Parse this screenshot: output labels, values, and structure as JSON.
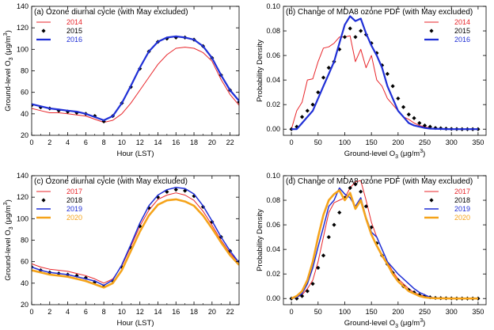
{
  "chart_data": [
    {
      "id": "a",
      "type": "line",
      "title": "(a) Ozone diurnal cycle (with May excluded)",
      "xlabel": "Hour (LST)",
      "ylabel": "Ground-level O3 (μg/m3)",
      "xlim": [
        0,
        23
      ],
      "ylim": [
        20,
        140
      ],
      "xticks": [
        0,
        2,
        4,
        6,
        8,
        10,
        12,
        14,
        16,
        18,
        20,
        22
      ],
      "yticks": [
        20,
        40,
        60,
        80,
        100,
        120,
        140
      ],
      "legend_position": "top-left",
      "series": [
        {
          "name": "2014",
          "color": "#e8252a",
          "style": "line",
          "width": 1.0,
          "x": [
            0,
            1,
            2,
            3,
            4,
            5,
            6,
            7,
            8,
            9,
            10,
            11,
            12,
            13,
            14,
            15,
            16,
            17,
            18,
            19,
            20,
            21,
            22,
            23
          ],
          "values": [
            45,
            43,
            41,
            41,
            40,
            39,
            38,
            35,
            32,
            34,
            40,
            50,
            62,
            74,
            86,
            95,
            101,
            102,
            101,
            97,
            89,
            72,
            58,
            48
          ]
        },
        {
          "name": "2015",
          "color": "#000000",
          "style": "markers",
          "x": [
            0,
            1,
            2,
            3,
            4,
            5,
            6,
            7,
            8,
            9,
            10,
            11,
            12,
            13,
            14,
            15,
            16,
            17,
            18,
            19,
            20,
            21,
            22,
            23
          ],
          "values": [
            48,
            46,
            45,
            43,
            42,
            41,
            40,
            38,
            33,
            38,
            50,
            65,
            82,
            98,
            107,
            110,
            111,
            111,
            109,
            103,
            92,
            76,
            62,
            51
          ]
        },
        {
          "name": "2016",
          "color": "#1f2fd6",
          "style": "line",
          "width": 2.2,
          "x": [
            0,
            1,
            2,
            3,
            4,
            5,
            6,
            7,
            8,
            9,
            10,
            11,
            12,
            13,
            14,
            15,
            16,
            17,
            18,
            19,
            20,
            21,
            22,
            23
          ],
          "values": [
            49,
            47,
            45,
            44,
            43,
            42,
            40,
            37,
            34,
            38,
            50,
            66,
            83,
            98,
            107,
            111,
            112,
            111,
            109,
            103,
            92,
            76,
            62,
            52
          ]
        }
      ]
    },
    {
      "id": "b",
      "type": "line",
      "title": "(b) Change of MDA8 ozone PDF (with May excluded)",
      "xlabel": "Ground-level O3 (μg/m3)",
      "ylabel": "Probability Density",
      "xlim": [
        -15,
        365
      ],
      "ylim": [
        -0.005,
        0.1
      ],
      "xticks": [
        0,
        50,
        100,
        150,
        200,
        250,
        300,
        350
      ],
      "yticks": [
        0.0,
        0.02,
        0.04,
        0.06,
        0.08,
        0.1
      ],
      "ytick_labels": [
        "0.00",
        "0.02",
        "0.04",
        "0.06",
        "0.08",
        "0.10"
      ],
      "legend_position": "top-right",
      "series": [
        {
          "name": "2014",
          "color": "#e8252a",
          "style": "line",
          "width": 1.0,
          "x": [
            0,
            10,
            20,
            30,
            40,
            50,
            60,
            70,
            80,
            90,
            100,
            110,
            120,
            130,
            140,
            150,
            160,
            170,
            180,
            190,
            200,
            210,
            220,
            230,
            240,
            250,
            260,
            270,
            280,
            290,
            300,
            310,
            320,
            330,
            340,
            350
          ],
          "values": [
            0.0,
            0.015,
            0.022,
            0.04,
            0.041,
            0.055,
            0.066,
            0.067,
            0.07,
            0.075,
            0.075,
            0.076,
            0.055,
            0.065,
            0.05,
            0.06,
            0.04,
            0.035,
            0.025,
            0.02,
            0.015,
            0.01,
            0.008,
            0.005,
            0.003,
            0.002,
            0.001,
            0.0005,
            0.0003,
            0.0002,
            0.0001,
            0.0,
            0.0,
            0.0,
            0.0,
            0.0
          ]
        },
        {
          "name": "2015",
          "color": "#000000",
          "style": "markers",
          "x": [
            0,
            10,
            20,
            30,
            40,
            50,
            60,
            70,
            80,
            90,
            100,
            110,
            120,
            130,
            140,
            150,
            160,
            170,
            180,
            190,
            200,
            210,
            220,
            230,
            240,
            250,
            260,
            270,
            280,
            290,
            300,
            310,
            320,
            330,
            340,
            350
          ],
          "values": [
            0.0,
            0.002,
            0.01,
            0.015,
            0.02,
            0.03,
            0.042,
            0.05,
            0.055,
            0.065,
            0.075,
            0.082,
            0.075,
            0.08,
            0.077,
            0.07,
            0.062,
            0.052,
            0.045,
            0.035,
            0.025,
            0.018,
            0.012,
            0.009,
            0.005,
            0.003,
            0.002,
            0.001,
            0.0007,
            0.0004,
            0.0002,
            0.0001,
            0.0,
            0.0,
            0.0,
            0.0
          ]
        },
        {
          "name": "2016",
          "color": "#1f2fd6",
          "style": "line",
          "width": 2.2,
          "x": [
            0,
            10,
            20,
            30,
            40,
            50,
            60,
            70,
            80,
            90,
            100,
            110,
            120,
            130,
            140,
            150,
            160,
            170,
            180,
            190,
            200,
            210,
            220,
            230,
            240,
            250,
            260,
            270,
            280,
            290,
            300,
            310,
            320,
            330,
            340,
            350
          ],
          "values": [
            0.0,
            0.0,
            0.005,
            0.01,
            0.015,
            0.025,
            0.035,
            0.045,
            0.055,
            0.07,
            0.085,
            0.092,
            0.088,
            0.09,
            0.078,
            0.068,
            0.06,
            0.05,
            0.035,
            0.025,
            0.015,
            0.01,
            0.005,
            0.003,
            0.002,
            0.001,
            0.0005,
            0.0003,
            0.0002,
            0.0001,
            0.0,
            0.0,
            0.0,
            0.0,
            0.0,
            0.0
          ]
        }
      ]
    },
    {
      "id": "c",
      "type": "line",
      "title": "(c) Ozone diurnal cycle (with May excluded)",
      "xlabel": "Hour (LST)",
      "ylabel": "Ground-level O3 (μg/m3)",
      "xlim": [
        0,
        23
      ],
      "ylim": [
        20,
        140
      ],
      "xticks": [
        0,
        2,
        4,
        6,
        8,
        10,
        12,
        14,
        16,
        18,
        20,
        22
      ],
      "yticks": [
        20,
        40,
        60,
        80,
        100,
        120,
        140
      ],
      "legend_position": "top-left",
      "series": [
        {
          "name": "2017",
          "color": "#e8252a",
          "style": "line",
          "width": 1.0,
          "x": [
            0,
            1,
            2,
            3,
            4,
            5,
            6,
            7,
            8,
            9,
            10,
            11,
            12,
            13,
            14,
            15,
            16,
            17,
            18,
            19,
            20,
            21,
            22,
            23
          ],
          "values": [
            58,
            55,
            53,
            52,
            51,
            49,
            47,
            44,
            40,
            44,
            56,
            74,
            93,
            108,
            118,
            122,
            124,
            122,
            117,
            107,
            94,
            80,
            68,
            59
          ]
        },
        {
          "name": "2018",
          "color": "#000000",
          "style": "markers",
          "x": [
            0,
            1,
            2,
            3,
            4,
            5,
            6,
            7,
            8,
            9,
            10,
            11,
            12,
            13,
            14,
            15,
            16,
            17,
            18,
            19,
            20,
            21,
            22,
            23
          ],
          "values": [
            55,
            52,
            50,
            49,
            48,
            47,
            45,
            41,
            37,
            42,
            55,
            73,
            93,
            110,
            120,
            125,
            127,
            126,
            121,
            111,
            97,
            83,
            70,
            60
          ]
        },
        {
          "name": "2019",
          "color": "#1f2fd6",
          "style": "line",
          "width": 1.5,
          "x": [
            0,
            1,
            2,
            3,
            4,
            5,
            6,
            7,
            8,
            9,
            10,
            11,
            12,
            13,
            14,
            15,
            16,
            17,
            18,
            19,
            20,
            21,
            22,
            23
          ],
          "values": [
            55,
            52,
            50,
            49,
            48,
            46,
            44,
            42,
            38,
            43,
            57,
            76,
            96,
            112,
            122,
            127,
            129,
            128,
            123,
            112,
            98,
            83,
            70,
            59
          ]
        },
        {
          "name": "2020",
          "color": "#f5a31a",
          "style": "line",
          "width": 2.6,
          "x": [
            0,
            1,
            2,
            3,
            4,
            5,
            6,
            7,
            8,
            9,
            10,
            11,
            12,
            13,
            14,
            15,
            16,
            17,
            18,
            19,
            20,
            21,
            22,
            23
          ],
          "values": [
            52,
            50,
            48,
            47,
            46,
            44,
            42,
            39,
            36,
            40,
            52,
            70,
            88,
            103,
            113,
            117,
            118,
            116,
            112,
            103,
            91,
            78,
            66,
            57
          ]
        }
      ]
    },
    {
      "id": "d",
      "type": "line",
      "title": "(d) Change of MDA8 ozone PDF (with May excluded)",
      "xlabel": "Ground-level O3 (μg/m3)",
      "ylabel": "Probability Density",
      "xlim": [
        -15,
        365
      ],
      "ylim": [
        -0.005,
        0.1
      ],
      "xticks": [
        0,
        50,
        100,
        150,
        200,
        250,
        300,
        350
      ],
      "yticks": [
        0.0,
        0.02,
        0.04,
        0.06,
        0.08,
        0.1
      ],
      "ytick_labels": [
        "0.00",
        "0.02",
        "0.04",
        "0.06",
        "0.08",
        "0.10"
      ],
      "legend_position": "top-right",
      "series": [
        {
          "name": "2017",
          "color": "#e8252a",
          "style": "line",
          "width": 1.0,
          "x": [
            0,
            10,
            20,
            30,
            40,
            50,
            60,
            70,
            80,
            90,
            100,
            110,
            120,
            130,
            140,
            150,
            160,
            170,
            180,
            190,
            200,
            210,
            220,
            230,
            240,
            250,
            260,
            270,
            280,
            290,
            300,
            310,
            320,
            330,
            340,
            350
          ],
          "values": [
            0.0,
            0.001,
            0.003,
            0.008,
            0.015,
            0.03,
            0.05,
            0.07,
            0.078,
            0.08,
            0.082,
            0.09,
            0.095,
            0.096,
            0.08,
            0.062,
            0.05,
            0.04,
            0.03,
            0.022,
            0.016,
            0.012,
            0.008,
            0.005,
            0.003,
            0.002,
            0.001,
            0.0005,
            0.0003,
            0.0002,
            0.0001,
            0.0,
            0.0,
            0.0,
            0.0,
            0.0
          ]
        },
        {
          "name": "2018",
          "color": "#000000",
          "style": "markers",
          "x": [
            0,
            10,
            20,
            30,
            40,
            50,
            60,
            70,
            80,
            90,
            100,
            110,
            120,
            130,
            140,
            150,
            160,
            170,
            180,
            190,
            200,
            210,
            220,
            230,
            240,
            250,
            260,
            270,
            280,
            290,
            300,
            310,
            320,
            330,
            340,
            350
          ],
          "values": [
            0.0,
            0.0,
            0.002,
            0.006,
            0.012,
            0.025,
            0.035,
            0.05,
            0.06,
            0.07,
            0.082,
            0.09,
            0.093,
            0.087,
            0.075,
            0.058,
            0.045,
            0.035,
            0.028,
            0.021,
            0.015,
            0.01,
            0.007,
            0.005,
            0.003,
            0.002,
            0.001,
            0.0005,
            0.0003,
            0.0002,
            0.0001,
            0.0,
            0.0,
            0.0,
            0.0,
            0.0
          ]
        },
        {
          "name": "2019",
          "color": "#1f2fd6",
          "style": "line",
          "width": 1.5,
          "x": [
            0,
            10,
            20,
            30,
            40,
            50,
            60,
            70,
            80,
            90,
            100,
            110,
            120,
            130,
            140,
            150,
            160,
            170,
            180,
            190,
            200,
            210,
            220,
            230,
            240,
            250,
            260,
            270,
            280,
            290,
            300,
            310,
            320,
            330,
            340,
            350
          ],
          "values": [
            0.0,
            0.001,
            0.004,
            0.012,
            0.025,
            0.042,
            0.058,
            0.075,
            0.08,
            0.09,
            0.085,
            0.082,
            0.075,
            0.082,
            0.066,
            0.054,
            0.05,
            0.04,
            0.03,
            0.025,
            0.02,
            0.016,
            0.012,
            0.008,
            0.005,
            0.003,
            0.001,
            0.0005,
            0.0003,
            0.0002,
            0.0001,
            0.0,
            0.0,
            0.0,
            0.0,
            0.0
          ]
        },
        {
          "name": "2020",
          "color": "#f5a31a",
          "style": "line",
          "width": 2.6,
          "x": [
            0,
            10,
            20,
            30,
            40,
            50,
            60,
            70,
            80,
            90,
            100,
            110,
            120,
            130,
            140,
            150,
            160,
            170,
            180,
            190,
            200,
            210,
            220,
            230,
            240,
            250,
            260,
            270,
            280,
            290,
            300,
            310,
            320,
            330,
            340,
            350
          ],
          "values": [
            0.0,
            0.002,
            0.006,
            0.015,
            0.03,
            0.05,
            0.068,
            0.08,
            0.085,
            0.088,
            0.08,
            0.086,
            0.073,
            0.08,
            0.065,
            0.052,
            0.043,
            0.035,
            0.028,
            0.02,
            0.014,
            0.01,
            0.006,
            0.004,
            0.002,
            0.001,
            0.0005,
            0.0003,
            0.0002,
            0.0001,
            0.0,
            0.0,
            0.0,
            0.0,
            0.0,
            0.0
          ]
        }
      ]
    }
  ]
}
